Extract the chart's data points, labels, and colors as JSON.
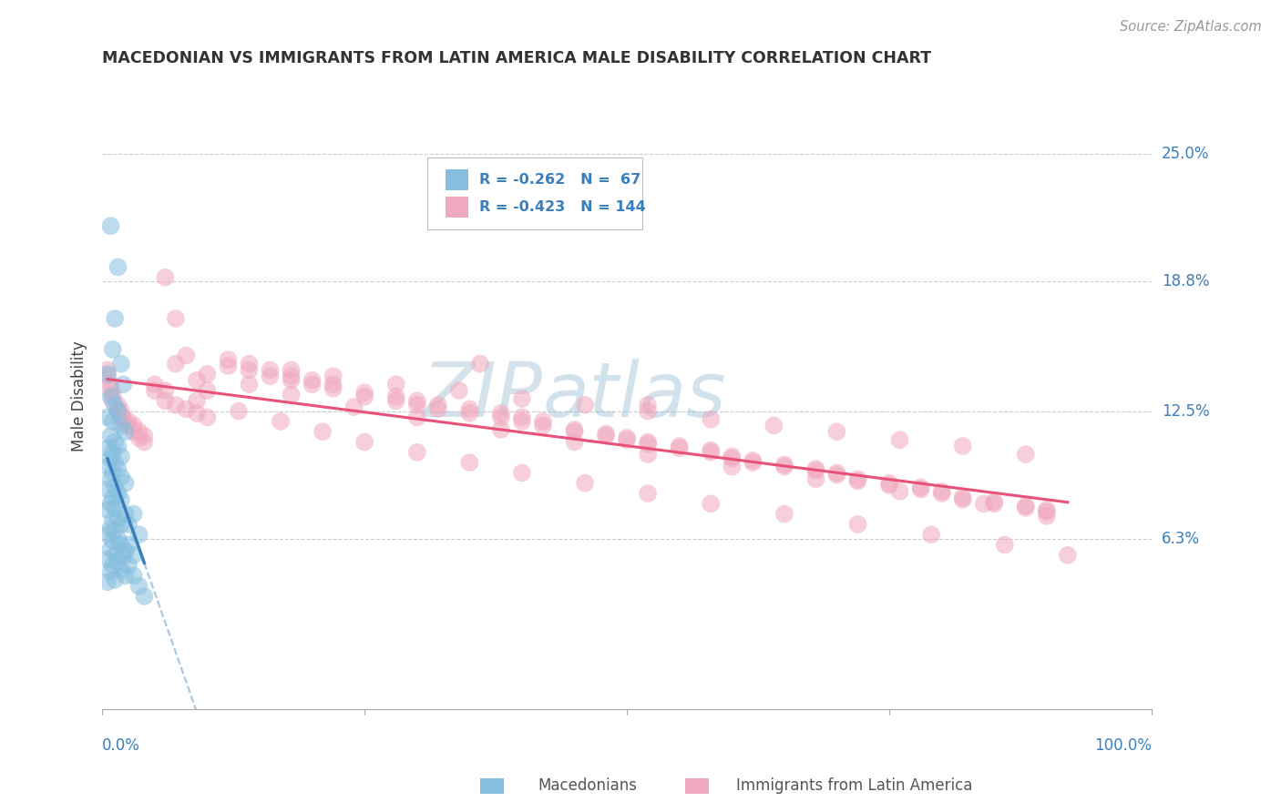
{
  "title": "MACEDONIAN VS IMMIGRANTS FROM LATIN AMERICA MALE DISABILITY CORRELATION CHART",
  "source": "Source: ZipAtlas.com",
  "ylabel": "Male Disability",
  "ytick_labels": [
    "25.0%",
    "18.8%",
    "12.5%",
    "6.3%"
  ],
  "ytick_values": [
    0.25,
    0.188,
    0.125,
    0.063
  ],
  "xlim": [
    0.0,
    1.0
  ],
  "ylim": [
    -0.02,
    0.285
  ],
  "legend_r1": "R = -0.262",
  "legend_n1": "N =  67",
  "legend_r2": "R = -0.423",
  "legend_n2": "N = 144",
  "color_blue": "#85bede",
  "color_pink": "#f0a8be",
  "color_blue_line": "#3a7fbc",
  "color_pink_line": "#e8517a",
  "color_blue_text": "#3a7fbc",
  "color_grid": "#cccccc",
  "background": "#ffffff",
  "mac_x": [
    0.008,
    0.015,
    0.012,
    0.01,
    0.018,
    0.005,
    0.02,
    0.008,
    0.012,
    0.015,
    0.005,
    0.01,
    0.018,
    0.022,
    0.008,
    0.012,
    0.015,
    0.005,
    0.01,
    0.018,
    0.008,
    0.012,
    0.005,
    0.015,
    0.01,
    0.018,
    0.008,
    0.022,
    0.012,
    0.005,
    0.015,
    0.01,
    0.018,
    0.008,
    0.012,
    0.005,
    0.022,
    0.015,
    0.01,
    0.018,
    0.008,
    0.012,
    0.005,
    0.015,
    0.01,
    0.018,
    0.008,
    0.022,
    0.012,
    0.005,
    0.015,
    0.01,
    0.018,
    0.008,
    0.022,
    0.012,
    0.005,
    0.03,
    0.025,
    0.035,
    0.02,
    0.025,
    0.03,
    0.035,
    0.04,
    0.025,
    0.03
  ],
  "mac_y": [
    0.215,
    0.195,
    0.17,
    0.155,
    0.148,
    0.143,
    0.138,
    0.132,
    0.128,
    0.125,
    0.122,
    0.12,
    0.118,
    0.115,
    0.113,
    0.11,
    0.108,
    0.107,
    0.105,
    0.103,
    0.102,
    0.1,
    0.098,
    0.097,
    0.095,
    0.093,
    0.092,
    0.09,
    0.088,
    0.087,
    0.085,
    0.083,
    0.082,
    0.08,
    0.078,
    0.077,
    0.075,
    0.073,
    0.072,
    0.07,
    0.068,
    0.067,
    0.065,
    0.063,
    0.062,
    0.06,
    0.058,
    0.057,
    0.055,
    0.053,
    0.052,
    0.05,
    0.048,
    0.047,
    0.045,
    0.043,
    0.042,
    0.075,
    0.07,
    0.065,
    0.055,
    0.05,
    0.045,
    0.04,
    0.035,
    0.06,
    0.055
  ],
  "lat_x": [
    0.005,
    0.008,
    0.01,
    0.015,
    0.018,
    0.02,
    0.025,
    0.03,
    0.035,
    0.04,
    0.005,
    0.008,
    0.01,
    0.015,
    0.018,
    0.02,
    0.025,
    0.03,
    0.035,
    0.04,
    0.05,
    0.06,
    0.07,
    0.08,
    0.09,
    0.1,
    0.05,
    0.06,
    0.07,
    0.08,
    0.09,
    0.1,
    0.12,
    0.14,
    0.16,
    0.18,
    0.2,
    0.22,
    0.12,
    0.14,
    0.16,
    0.18,
    0.2,
    0.22,
    0.25,
    0.28,
    0.3,
    0.32,
    0.35,
    0.38,
    0.4,
    0.42,
    0.25,
    0.28,
    0.3,
    0.32,
    0.35,
    0.38,
    0.4,
    0.42,
    0.45,
    0.48,
    0.5,
    0.52,
    0.55,
    0.58,
    0.45,
    0.48,
    0.5,
    0.52,
    0.55,
    0.58,
    0.6,
    0.62,
    0.65,
    0.68,
    0.7,
    0.6,
    0.62,
    0.65,
    0.68,
    0.7,
    0.72,
    0.75,
    0.78,
    0.8,
    0.72,
    0.75,
    0.78,
    0.8,
    0.82,
    0.85,
    0.88,
    0.9,
    0.82,
    0.85,
    0.88,
    0.9,
    0.36,
    0.52,
    0.18,
    0.22,
    0.28,
    0.34,
    0.4,
    0.46,
    0.52,
    0.58,
    0.64,
    0.7,
    0.76,
    0.82,
    0.88,
    0.07,
    0.1,
    0.14,
    0.18,
    0.24,
    0.3,
    0.38,
    0.45,
    0.52,
    0.6,
    0.68,
    0.76,
    0.84,
    0.9,
    0.06,
    0.09,
    0.13,
    0.17,
    0.21,
    0.25,
    0.3,
    0.35,
    0.4,
    0.46,
    0.52,
    0.58,
    0.65,
    0.72,
    0.79,
    0.86,
    0.92
  ],
  "lat_y": [
    0.145,
    0.138,
    0.133,
    0.128,
    0.125,
    0.122,
    0.12,
    0.118,
    0.115,
    0.113,
    0.142,
    0.135,
    0.13,
    0.125,
    0.122,
    0.12,
    0.118,
    0.115,
    0.112,
    0.11,
    0.138,
    0.19,
    0.17,
    0.152,
    0.14,
    0.135,
    0.135,
    0.13,
    0.128,
    0.126,
    0.124,
    0.122,
    0.15,
    0.148,
    0.145,
    0.142,
    0.14,
    0.138,
    0.147,
    0.145,
    0.142,
    0.14,
    0.138,
    0.136,
    0.134,
    0.132,
    0.13,
    0.128,
    0.126,
    0.124,
    0.122,
    0.12,
    0.132,
    0.13,
    0.128,
    0.126,
    0.124,
    0.122,
    0.12,
    0.118,
    0.116,
    0.114,
    0.112,
    0.11,
    0.108,
    0.106,
    0.115,
    0.113,
    0.111,
    0.109,
    0.107,
    0.105,
    0.103,
    0.101,
    0.099,
    0.097,
    0.095,
    0.102,
    0.1,
    0.098,
    0.096,
    0.094,
    0.092,
    0.09,
    0.088,
    0.086,
    0.091,
    0.089,
    0.087,
    0.085,
    0.083,
    0.081,
    0.079,
    0.077,
    0.082,
    0.08,
    0.078,
    0.076,
    0.148,
    0.128,
    0.145,
    0.142,
    0.138,
    0.135,
    0.131,
    0.128,
    0.125,
    0.121,
    0.118,
    0.115,
    0.111,
    0.108,
    0.104,
    0.148,
    0.143,
    0.138,
    0.133,
    0.127,
    0.122,
    0.116,
    0.11,
    0.104,
    0.098,
    0.092,
    0.086,
    0.08,
    0.074,
    0.135,
    0.13,
    0.125,
    0.12,
    0.115,
    0.11,
    0.105,
    0.1,
    0.095,
    0.09,
    0.085,
    0.08,
    0.075,
    0.07,
    0.065,
    0.06,
    0.055
  ]
}
